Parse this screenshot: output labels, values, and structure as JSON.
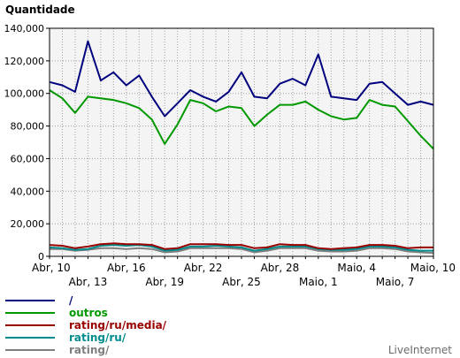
{
  "chart_data": {
    "type": "line",
    "ylabel": "Quantidade",
    "ylim": [
      0,
      140000
    ],
    "y_ticks": [
      "0",
      "20,000",
      "40,000",
      "60,000",
      "80,000",
      "100,000",
      "120,000",
      "140,000"
    ],
    "x_tick_labels": [
      "Abr, 10",
      "Abr, 13",
      "Abr, 16",
      "Abr, 19",
      "Abr, 22",
      "Abr, 25",
      "Abr, 28",
      "Maio, 1",
      "Maio, 4",
      "Maio, 7",
      "Maio, 10"
    ],
    "x_tick_index": [
      0,
      3,
      6,
      9,
      12,
      15,
      18,
      21,
      24,
      27,
      30
    ],
    "grid": true,
    "legend_position": "bottom-left",
    "series": [
      {
        "name": "/",
        "color": "#00007f",
        "values": [
          107000,
          105000,
          101000,
          132000,
          108000,
          113000,
          105000,
          111000,
          98000,
          86000,
          94000,
          102000,
          98000,
          95000,
          101000,
          113000,
          98000,
          97000,
          106000,
          109000,
          105000,
          124000,
          98000,
          97000,
          96000,
          106000,
          107000,
          100000,
          93000,
          95000,
          93000
        ]
      },
      {
        "name": "outros",
        "color": "#009900",
        "values": [
          102000,
          97000,
          88000,
          98000,
          97000,
          96000,
          94000,
          91000,
          84000,
          69000,
          81000,
          96000,
          94000,
          89000,
          92000,
          91000,
          80000,
          87000,
          93000,
          93000,
          95000,
          90000,
          86000,
          84000,
          85000,
          96000,
          93000,
          92000,
          83000,
          74000,
          66000
        ]
      },
      {
        "name": "rating/ru/media/",
        "color": "#990000",
        "values": [
          7000,
          6500,
          5000,
          6000,
          7500,
          8000,
          7500,
          7500,
          7000,
          4500,
          5000,
          7500,
          7500,
          7500,
          7000,
          7000,
          5000,
          5500,
          7500,
          7000,
          7000,
          5000,
          4500,
          5000,
          5500,
          7000,
          7000,
          6500,
          5000,
          5500,
          5500
        ]
      },
      {
        "name": "rating/ru/",
        "color": "#008c8c",
        "values": [
          5500,
          5000,
          4000,
          4500,
          6500,
          7000,
          6500,
          7000,
          6000,
          3500,
          4000,
          6000,
          6000,
          6500,
          6000,
          5500,
          3500,
          4500,
          6000,
          6000,
          6000,
          4500,
          4000,
          4000,
          4500,
          6000,
          6000,
          5500,
          4000,
          3500,
          3500
        ]
      },
      {
        "name": "rating/",
        "color": "#7f7f7f",
        "values": [
          4500,
          4500,
          3500,
          4000,
          5000,
          5000,
          4500,
          5000,
          4500,
          2500,
          3000,
          5000,
          5000,
          5000,
          5000,
          4500,
          2500,
          3500,
          5000,
          5000,
          5000,
          3500,
          3000,
          3000,
          3500,
          5000,
          5000,
          4500,
          3000,
          2500,
          2000
        ]
      }
    ]
  },
  "brand": "LiveInternet"
}
